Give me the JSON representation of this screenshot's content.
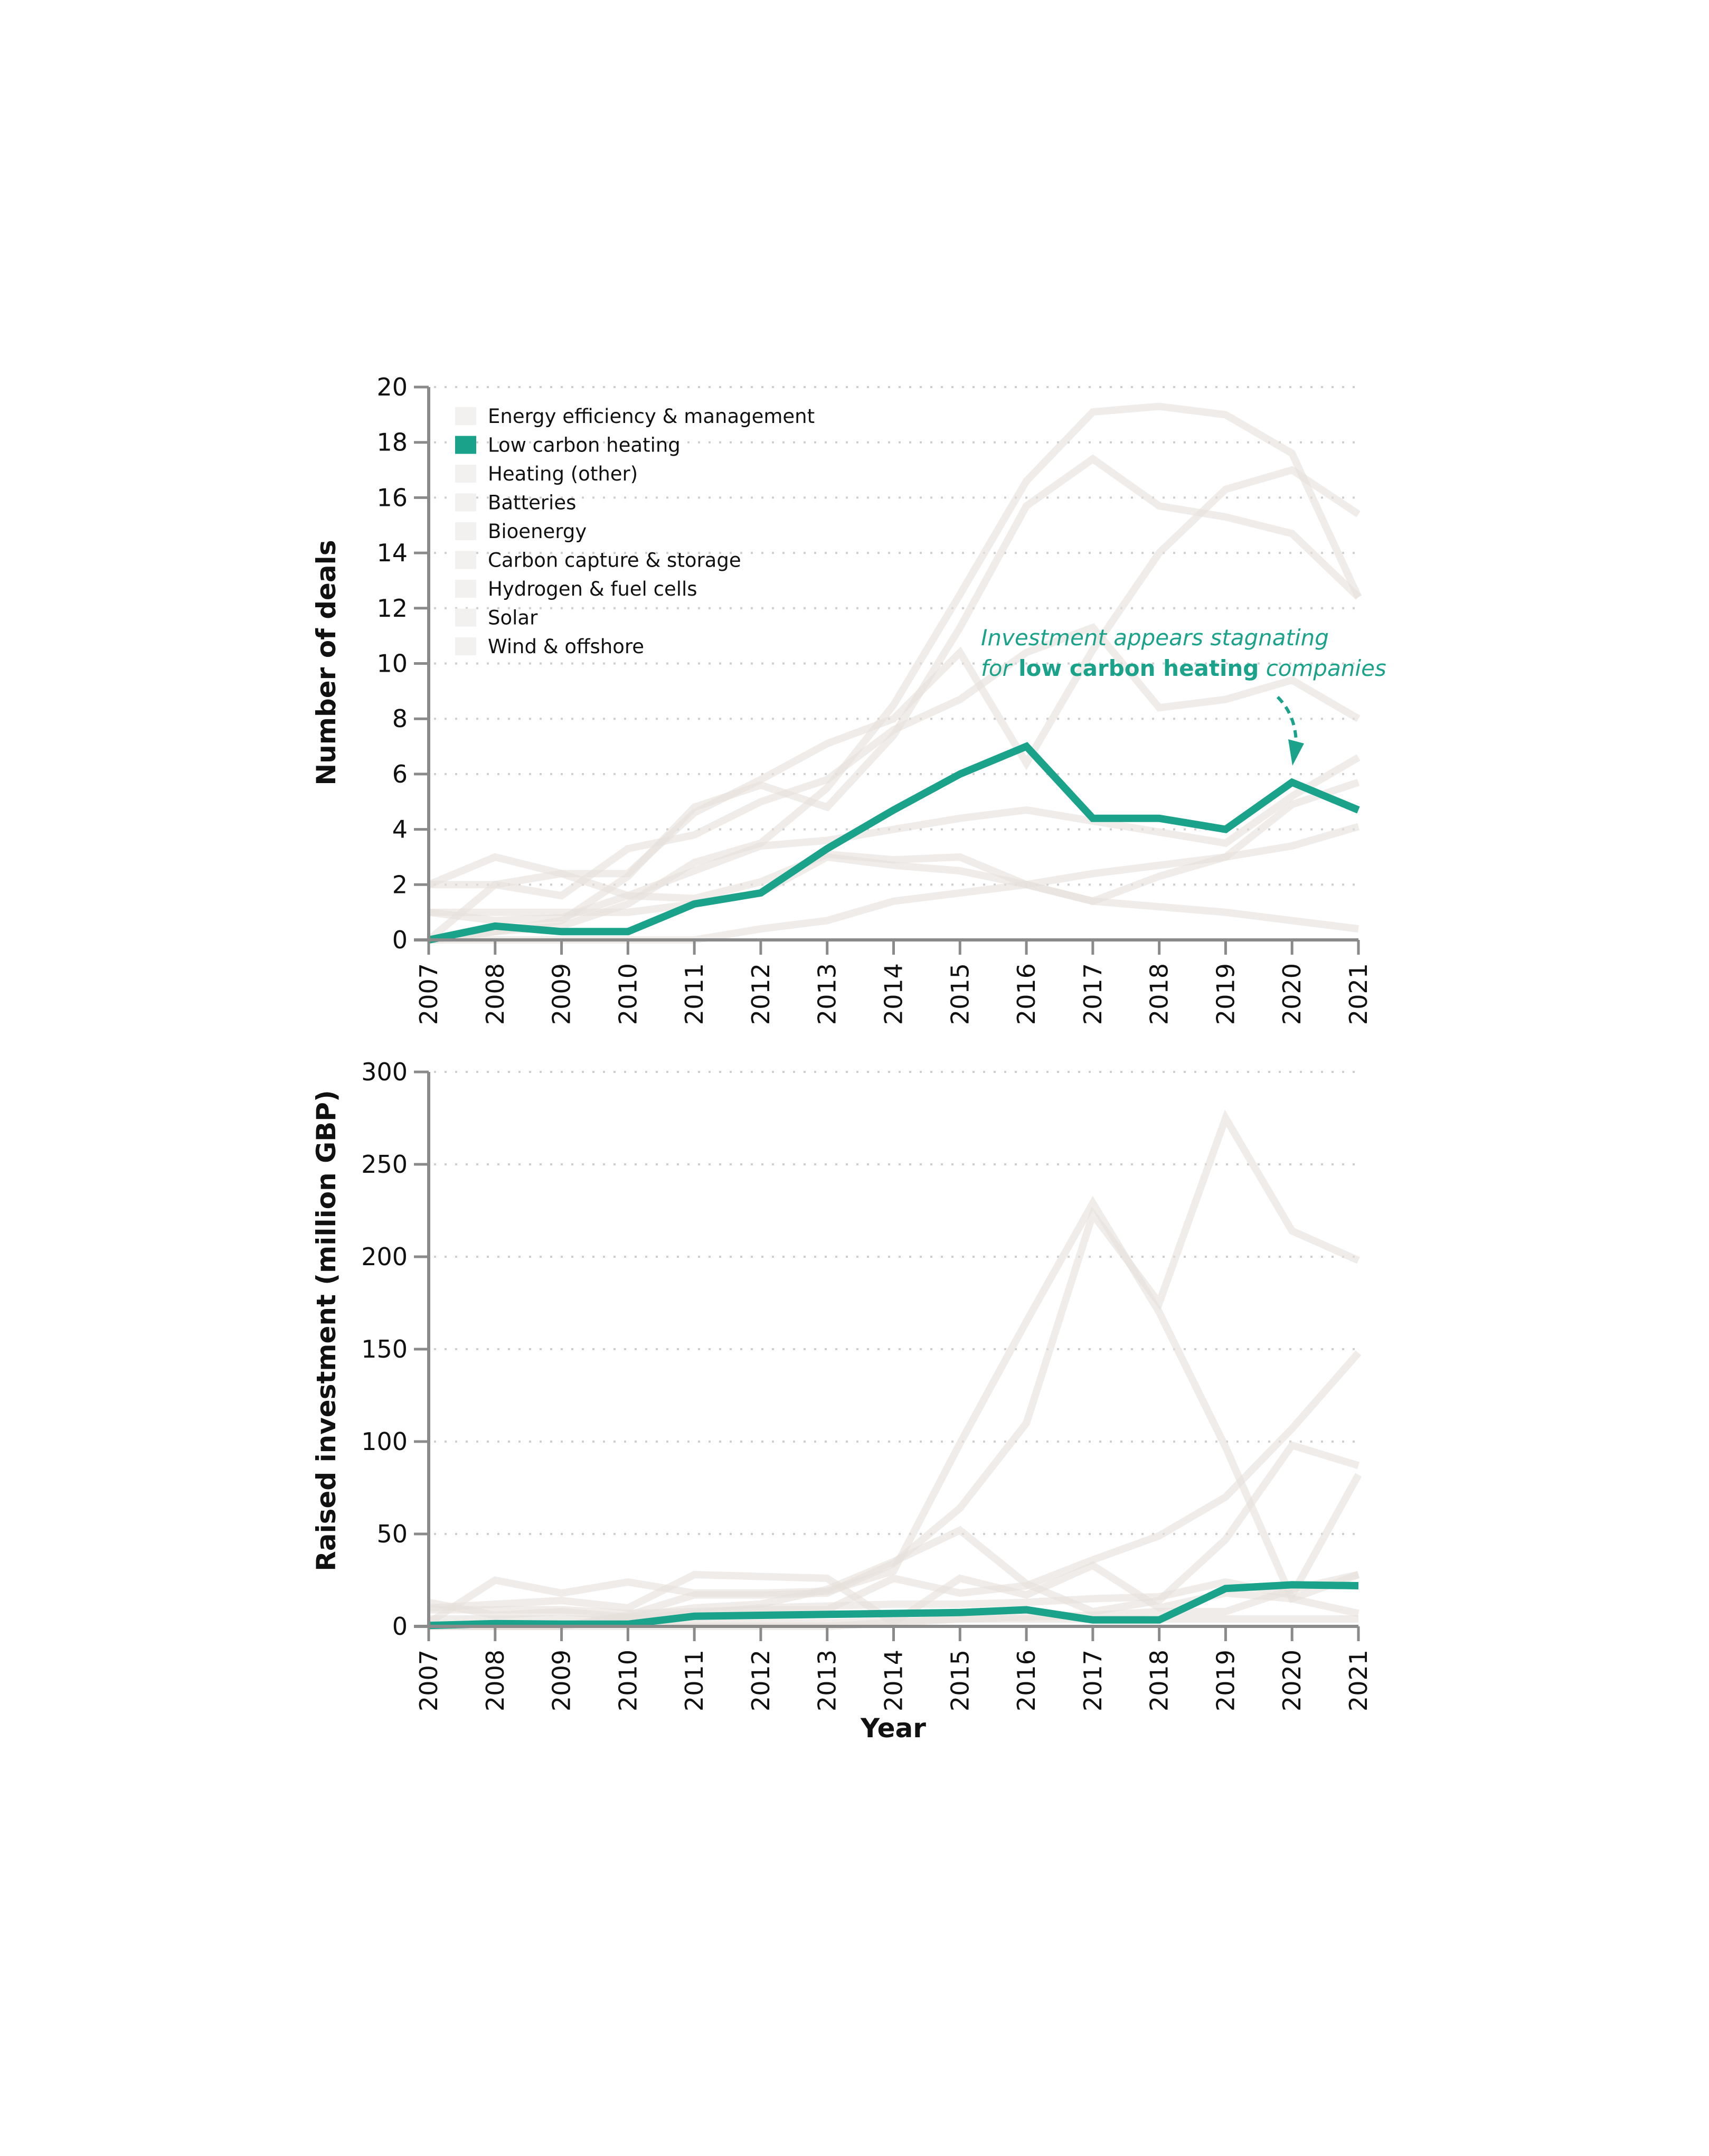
{
  "colors": {
    "highlight": "#1aa38a",
    "muted": "#e6e0dc",
    "axis": "#8a8a8a",
    "text": "#111111"
  },
  "legend": {
    "items": [
      {
        "label": "Energy efficiency & management",
        "highlighted": false
      },
      {
        "label": "Low carbon heating",
        "highlighted": true
      },
      {
        "label": "Heating (other)",
        "highlighted": false
      },
      {
        "label": "Batteries",
        "highlighted": false
      },
      {
        "label": "Bioenergy",
        "highlighted": false
      },
      {
        "label": "Carbon capture & storage",
        "highlighted": false
      },
      {
        "label": "Hydrogen & fuel cells",
        "highlighted": false
      },
      {
        "label": "Solar",
        "highlighted": false
      },
      {
        "label": "Wind & offshore",
        "highlighted": false
      }
    ]
  },
  "annotation": {
    "line1": "Investment appears stagnating",
    "line2_prefix": "for ",
    "line2_bold": "low carbon heating",
    "line2_suffix": " companies"
  },
  "chart_data": [
    {
      "type": "line",
      "title": "",
      "xlabel": "",
      "ylabel": "Number of deals",
      "ylim": [
        0,
        20
      ],
      "yticks": [
        0,
        2,
        4,
        6,
        8,
        10,
        12,
        14,
        16,
        18,
        20
      ],
      "grid": true,
      "legend_position": "top-left",
      "x": [
        "2007",
        "2008",
        "2009",
        "2010",
        "2011",
        "2012",
        "2013",
        "2014",
        "2015",
        "2016",
        "2017",
        "2018",
        "2019",
        "2020",
        "2021"
      ],
      "highlight_series": "Low carbon heating",
      "series": [
        {
          "name": "Energy efficiency & management",
          "values": [
            0,
            0.3,
            0.5,
            1.3,
            2.8,
            3.5,
            5.5,
            8.5,
            12.5,
            16.6,
            19.1,
            19.3,
            19.0,
            17.6,
            12.4
          ]
        },
        {
          "name": "Low carbon heating",
          "values": [
            0,
            0.5,
            0.3,
            0.3,
            1.3,
            1.7,
            3.3,
            4.7,
            6.0,
            7.0,
            4.4,
            4.4,
            4.0,
            5.7,
            4.7
          ]
        },
        {
          "name": "Heating (other)",
          "values": [
            1.0,
            1.0,
            1.0,
            1.0,
            1.3,
            1.7,
            3.0,
            2.7,
            2.5,
            2.0,
            1.4,
            1.2,
            1.0,
            0.7,
            0.4
          ]
        },
        {
          "name": "Batteries",
          "values": [
            2.0,
            3.0,
            2.4,
            1.6,
            1.5,
            2.1,
            3.1,
            2.9,
            3.0,
            2.0,
            1.4,
            2.3,
            3.0,
            3.4,
            4.1
          ]
        },
        {
          "name": "Bioenergy",
          "values": [
            2.0,
            2.0,
            1.6,
            3.3,
            3.8,
            5.0,
            5.8,
            7.6,
            8.7,
            10.4,
            11.3,
            8.4,
            8.7,
            9.4,
            8.0
          ]
        },
        {
          "name": "Carbon capture & storage",
          "values": [
            0,
            0,
            0,
            0,
            0,
            0.4,
            0.7,
            1.4,
            1.7,
            2.0,
            2.4,
            2.7,
            3.0,
            4.9,
            5.7
          ]
        },
        {
          "name": "Hydrogen & fuel cells",
          "values": [
            0,
            2.0,
            2.4,
            2.4,
            4.6,
            5.8,
            7.1,
            8.0,
            10.4,
            6.4,
            10.5,
            14.0,
            16.3,
            17.0,
            15.4
          ]
        },
        {
          "name": "Solar",
          "values": [
            1.0,
            0.7,
            0.8,
            1.6,
            2.5,
            3.4,
            3.6,
            4.0,
            4.4,
            4.7,
            4.3,
            3.9,
            3.5,
            5.2,
            6.6
          ]
        },
        {
          "name": "Wind & offshore",
          "values": [
            0,
            0.3,
            0.7,
            2.3,
            4.8,
            5.6,
            4.8,
            7.4,
            11.3,
            15.7,
            17.4,
            15.7,
            15.3,
            14.7,
            12.4
          ]
        }
      ]
    },
    {
      "type": "line",
      "title": "",
      "xlabel": "Year",
      "ylabel": "Raised investment (million GBP)",
      "ylim": [
        0,
        300
      ],
      "yticks": [
        0,
        50,
        100,
        150,
        200,
        250,
        300
      ],
      "grid": true,
      "x": [
        "2007",
        "2008",
        "2009",
        "2010",
        "2011",
        "2012",
        "2013",
        "2014",
        "2015",
        "2016",
        "2017",
        "2018",
        "2019",
        "2020",
        "2021"
      ],
      "highlight_series": "Low carbon heating",
      "series": [
        {
          "name": "Energy efficiency & management",
          "values": [
            2,
            25,
            18,
            24,
            18,
            18,
            19,
            30,
            99,
            165,
            229,
            170,
            97,
            15,
            28
          ]
        },
        {
          "name": "Low carbon heating",
          "values": [
            0.5,
            1.5,
            1.2,
            1.2,
            5.5,
            6,
            6.5,
            7,
            7.5,
            9,
            3.5,
            3.5,
            20.5,
            22.5,
            22
          ]
        },
        {
          "name": "Heating (other)",
          "values": [
            13,
            6,
            8,
            5,
            2,
            2,
            2,
            3,
            4,
            4,
            4,
            4,
            4,
            4,
            4
          ]
        },
        {
          "name": "Batteries",
          "values": [
            0,
            0,
            0,
            5,
            10,
            12,
            20,
            35,
            52,
            23,
            8,
            14,
            47,
            98,
            87
          ]
        },
        {
          "name": "Bioenergy",
          "values": [
            10,
            12,
            14,
            10,
            28,
            27,
            26,
            2,
            26,
            17,
            33,
            10,
            18,
            15,
            7
          ]
        },
        {
          "name": "Carbon capture & storage",
          "values": [
            0,
            0,
            0,
            0,
            0,
            0,
            0,
            2,
            4,
            5,
            6,
            8,
            8,
            20,
            28
          ]
        },
        {
          "name": "Hydrogen & fuel cells",
          "values": [
            0,
            0,
            0,
            6,
            17,
            17,
            18,
            34,
            64,
            110,
            223,
            175,
            275,
            214,
            198
          ]
        },
        {
          "name": "Solar",
          "values": [
            4,
            4,
            4,
            4,
            7,
            10,
            11,
            12,
            12,
            13,
            15,
            16,
            24,
            17,
            82
          ]
        },
        {
          "name": "Wind & offshore",
          "values": [
            9,
            9,
            9,
            7,
            8,
            9,
            9,
            26,
            18,
            22,
            36,
            49,
            70,
            107,
            148
          ]
        }
      ]
    }
  ]
}
